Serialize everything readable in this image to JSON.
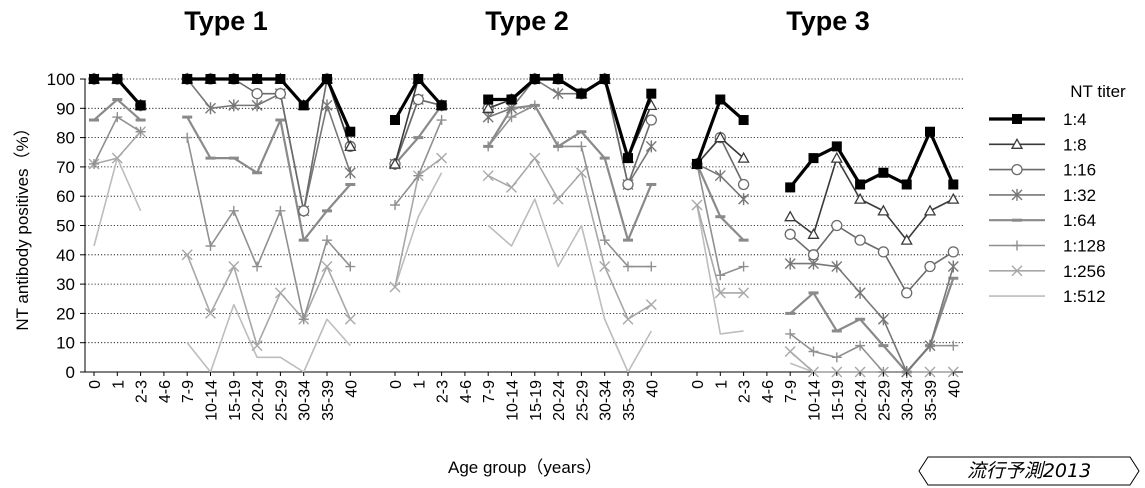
{
  "chart_data": {
    "type": "line",
    "ylabel": "NT antibody positives（%）",
    "xlabel": "Age group（years）",
    "ylim": [
      0,
      100
    ],
    "yticks": [
      "0",
      "10",
      "20",
      "30",
      "40",
      "50",
      "60",
      "70",
      "80",
      "90",
      "100"
    ],
    "grid": "horizontal dotted",
    "categories": [
      "0",
      "1",
      "2-3",
      "4-6",
      "7-9",
      "10-14",
      "15-19",
      "20-24",
      "25-29",
      "30-34",
      "35-39",
      "40"
    ],
    "legend": {
      "title": "NT titer",
      "position": "right",
      "entries": [
        "1:4",
        "1:8",
        "1:16",
        "1:32",
        "1:64",
        "1:128",
        "1:256",
        "1:512"
      ]
    },
    "panels": [
      {
        "title": "Type 1",
        "series": [
          {
            "name": "1:4",
            "values": [
              100,
              100,
              91,
              null,
              100,
              100,
              100,
              100,
              100,
              91,
              100,
              82
            ]
          },
          {
            "name": "1:8",
            "values": [
              100,
              100,
              91,
              null,
              100,
              100,
              100,
              100,
              100,
              91,
              100,
              77
            ]
          },
          {
            "name": "1:16",
            "values": [
              100,
              100,
              91,
              null,
              100,
              100,
              100,
              95,
              95,
              55,
              100,
              77
            ]
          },
          {
            "name": "1:32",
            "values": [
              100,
              100,
              91,
              null,
              100,
              90,
              91,
              91,
              95,
              55,
              91,
              68
            ]
          },
          {
            "name": "1:64",
            "values": [
              86,
              93,
              86,
              null,
              87,
              73,
              73,
              68,
              86,
              45,
              55,
              64
            ]
          },
          {
            "name": "1:128",
            "values": [
              71,
              87,
              82,
              null,
              80,
              43,
              55,
              36,
              55,
              18,
              45,
              36
            ]
          },
          {
            "name": "1:256",
            "values": [
              71,
              73,
              82,
              null,
              40,
              20,
              36,
              9,
              27,
              18,
              36,
              18
            ]
          },
          {
            "name": "1:512",
            "values": [
              43,
              73,
              55,
              null,
              10,
              0,
              23,
              5,
              5,
              0,
              18,
              9
            ]
          }
        ]
      },
      {
        "title": "Type 2",
        "series": [
          {
            "name": "1:4",
            "values": [
              86,
              100,
              91,
              null,
              93,
              93,
              100,
              100,
              95,
              100,
              73,
              95
            ]
          },
          {
            "name": "1:8",
            "values": [
              71,
              100,
              91,
              null,
              90,
              93,
              100,
              100,
              95,
              100,
              73,
              91
            ]
          },
          {
            "name": "1:16",
            "values": [
              71,
              93,
              91,
              null,
              90,
              93,
              100,
              100,
              95,
              100,
              64,
              86
            ]
          },
          {
            "name": "1:32",
            "values": [
              71,
              93,
              91,
              null,
              87,
              90,
              100,
              95,
              95,
              100,
              64,
              77
            ]
          },
          {
            "name": "1:64",
            "values": [
              71,
              80,
              91,
              null,
              77,
              90,
              91,
              77,
              82,
              73,
              45,
              64
            ]
          },
          {
            "name": "1:128",
            "values": [
              57,
              67,
              86,
              null,
              77,
              87,
              91,
              77,
              77,
              45,
              36,
              36
            ]
          },
          {
            "name": "1:256",
            "values": [
              29,
              67,
              73,
              null,
              67,
              63,
              73,
              59,
              68,
              36,
              18,
              23
            ]
          },
          {
            "name": "1:512",
            "values": [
              29,
              53,
              68,
              null,
              50,
              43,
              59,
              36,
              50,
              18,
              0,
              14
            ]
          }
        ]
      },
      {
        "title": "Type 3",
        "series": [
          {
            "name": "1:4",
            "values": [
              71,
              93,
              86,
              null,
              63,
              73,
              77,
              64,
              68,
              64,
              82,
              64
            ]
          },
          {
            "name": "1:8",
            "values": [
              71,
              80,
              73,
              null,
              53,
              47,
              73,
              59,
              55,
              45,
              55,
              59
            ]
          },
          {
            "name": "1:16",
            "values": [
              71,
              80,
              64,
              null,
              47,
              40,
              50,
              45,
              41,
              27,
              36,
              41
            ]
          },
          {
            "name": "1:32",
            "values": [
              71,
              67,
              59,
              null,
              37,
              37,
              36,
              27,
              18,
              0,
              9,
              36
            ]
          },
          {
            "name": "1:64",
            "values": [
              71,
              53,
              45,
              null,
              20,
              27,
              14,
              18,
              9,
              0,
              9,
              32
            ]
          },
          {
            "name": "1:128",
            "values": [
              71,
              33,
              36,
              null,
              13,
              7,
              5,
              9,
              0,
              0,
              9,
              9
            ]
          },
          {
            "name": "1:256",
            "values": [
              57,
              27,
              27,
              null,
              7,
              0,
              0,
              0,
              0,
              0,
              0,
              0
            ]
          },
          {
            "name": "1:512",
            "values": [
              57,
              13,
              14,
              null,
              3,
              0,
              0,
              0,
              0,
              0,
              0,
              0
            ]
          }
        ]
      }
    ],
    "styles": {
      "1:4": {
        "color": "#000000",
        "marker": "filled-square",
        "width": 3.2
      },
      "1:8": {
        "color": "#3a3a3a",
        "marker": "triangle",
        "width": 1.6
      },
      "1:16": {
        "color": "#6a6a6a",
        "marker": "circle",
        "width": 1.6
      },
      "1:32": {
        "color": "#777777",
        "marker": "asterisk",
        "width": 1.6
      },
      "1:64": {
        "color": "#8a8a8a",
        "marker": "dash",
        "width": 2.2
      },
      "1:128": {
        "color": "#909090",
        "marker": "plus",
        "width": 1.6
      },
      "1:256": {
        "color": "#a8a8a8",
        "marker": "x",
        "width": 1.6
      },
      "1:512": {
        "color": "#bdbdbd",
        "marker": "none",
        "width": 1.6
      }
    }
  },
  "stamp": {
    "text": "流行予測2013"
  }
}
